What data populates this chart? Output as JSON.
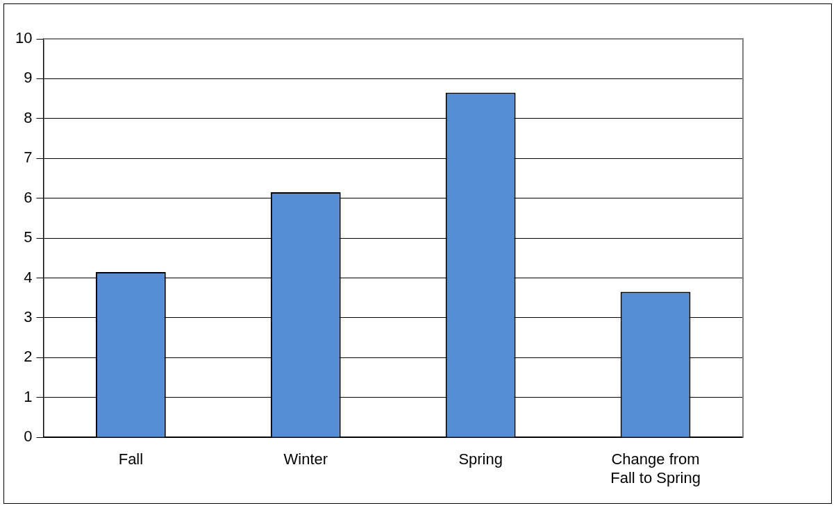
{
  "chart_data": {
    "type": "bar",
    "categories": [
      "Fall",
      "Winter",
      "Spring",
      "Change from Fall to Spring"
    ],
    "values": [
      4.15,
      6.15,
      8.65,
      3.65
    ],
    "color": "#558ed5",
    "ylim": [
      0,
      10
    ],
    "yticks": [
      0,
      1,
      2,
      3,
      4,
      5,
      6,
      7,
      8,
      9,
      10
    ],
    "grid": "y",
    "legend": false
  }
}
